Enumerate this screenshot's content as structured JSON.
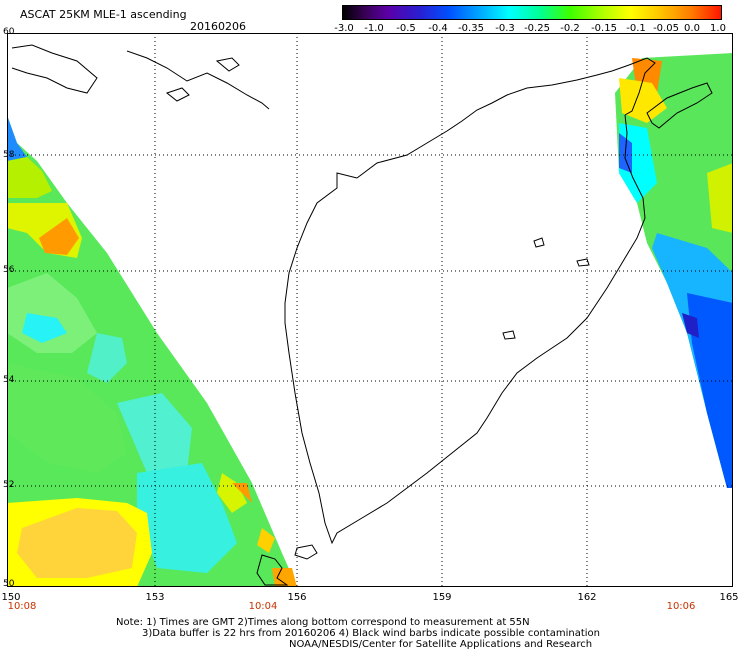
{
  "header": {
    "title": "ASCAT 25KM MLE-1 ascending",
    "date": "20160206"
  },
  "colorbar": {
    "labels": [
      "-3.0",
      "-1.0",
      "-0.5",
      "-0.4",
      "-0.35",
      "-0.3",
      "-0.25",
      "-0.2",
      "-0.15",
      "-0.1",
      "-0.05",
      "0.0",
      "1.0"
    ]
  },
  "axes": {
    "lat_labels": [
      "60",
      "58",
      "56",
      "54",
      "52",
      "50"
    ],
    "lon_labels": [
      "150",
      "153",
      "156",
      "159",
      "162",
      "165"
    ]
  },
  "pass_times": {
    "left": "10:08",
    "middle": "10:04",
    "right": "10:06"
  },
  "footer": {
    "line1": "Note: 1) Times are GMT 2)Times along bottom correspond to measurement at 55N",
    "line2": "3)Data buffer is 22 hrs from 20160206 4) Black wind barbs indicate possible contamination",
    "line3": "NOAA/NESDIS/Center for Satellite Applications and Research"
  },
  "colors": {
    "scale": [
      "#000000",
      "#3a0058",
      "#5b00a8",
      "#2a1ed0",
      "#0050ff",
      "#00a6ff",
      "#00ffff",
      "#00ff96",
      "#3cff00",
      "#a8ff00",
      "#ffff00",
      "#ffc400",
      "#ff7d00",
      "#ff1500"
    ],
    "time_label": "#c83200"
  }
}
